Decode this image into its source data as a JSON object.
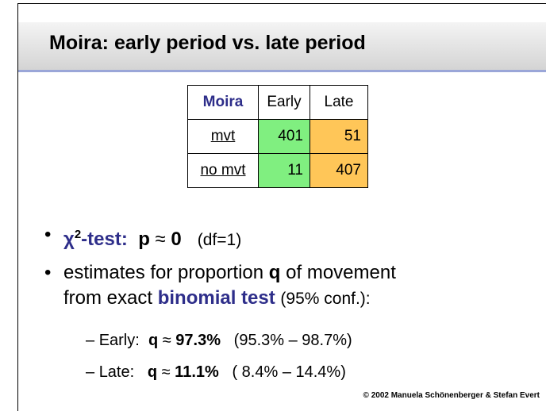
{
  "header": {
    "title": "Moira: early period vs. late period"
  },
  "table": {
    "header": [
      "Moira",
      "Early",
      "Late"
    ],
    "rows": [
      [
        "mvt",
        "401",
        "51"
      ],
      [
        "no mvt",
        "11",
        "407"
      ]
    ]
  },
  "bullets": [
    [
      "χ",
      "2",
      "-test:",
      "p",
      "≈",
      "0",
      "(df=1)"
    ],
    [
      "estimates for proportion",
      "q",
      "of movement",
      "from exact",
      "binomial test",
      "(95% conf.):"
    ]
  ],
  "subbullets": [
    [
      "Early:",
      "q",
      "≈",
      "97.3%",
      "(95.3% – 98.7%)"
    ],
    [
      "Late:",
      "q",
      "≈",
      "11.1%",
      "( 8.4% – 14.4%)"
    ]
  ],
  "footer": "© 2002  Manuela Schönenberger  & Stefan Evert"
}
